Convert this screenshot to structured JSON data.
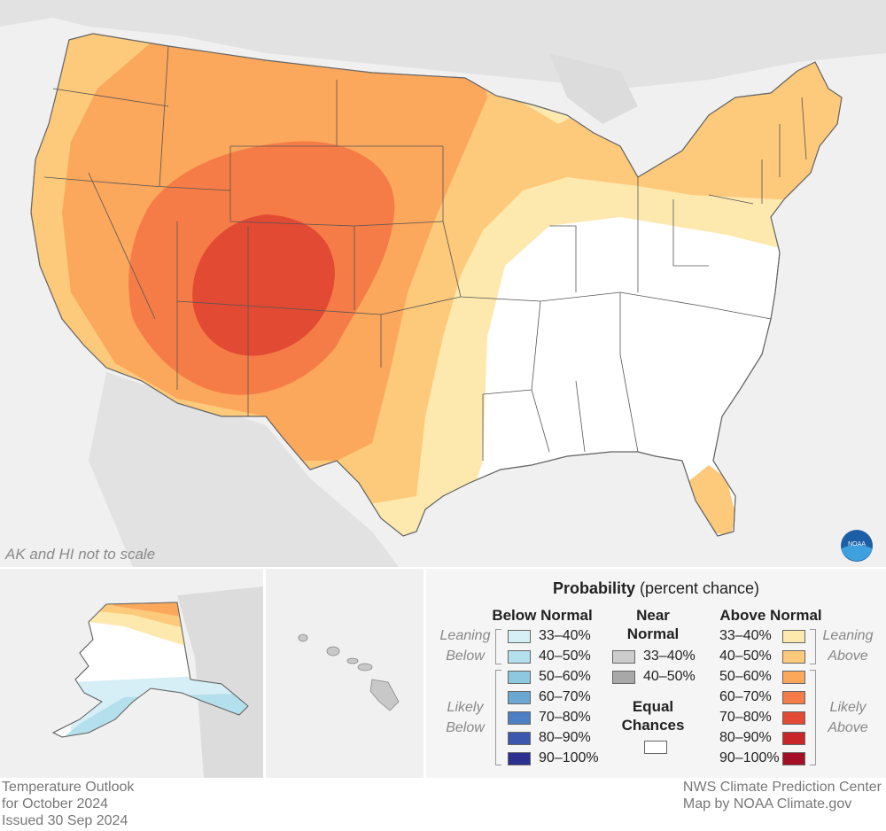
{
  "map": {
    "note": "AK and HI not to scale",
    "title_line1": "Temperature Outlook",
    "title_line2": "for October 2024",
    "issued": "Issued 30 Sep 2024",
    "credit_line1": "NWS Climate Prediction Center",
    "credit_line2": "Map by NOAA Climate.gov",
    "logo_text": "NOAA"
  },
  "legend": {
    "title_bold": "Probability",
    "title_rest": " (percent chance)",
    "below_header": "Below Normal",
    "near_header_1": "Near",
    "near_header_2": "Normal",
    "above_header": "Above Normal",
    "leaning_1": "Leaning",
    "below_word": "Below",
    "leaning_2": "Leaning",
    "above_word": "Above",
    "likely_1": "Likely",
    "likely_below": "Below",
    "likely_2": "Likely",
    "likely_above": "Above",
    "equal_1": "Equal",
    "equal_2": "Chances",
    "below": [
      {
        "label": "33–40%",
        "color": "#d6eef6"
      },
      {
        "label": "40–50%",
        "color": "#b4dfec"
      },
      {
        "label": "50–60%",
        "color": "#8ec8e0"
      },
      {
        "label": "60–70%",
        "color": "#6aa7d2"
      },
      {
        "label": "70–80%",
        "color": "#4d7fc4"
      },
      {
        "label": "80–90%",
        "color": "#3b58ae"
      },
      {
        "label": "90–100%",
        "color": "#2b2f8f"
      }
    ],
    "near": [
      {
        "label": "33–40%",
        "color": "#cccccc"
      },
      {
        "label": "40–50%",
        "color": "#a8a8a8"
      }
    ],
    "above": [
      {
        "label": "33–40%",
        "color": "#fde8ae"
      },
      {
        "label": "40–50%",
        "color": "#fdc97a"
      },
      {
        "label": "50–60%",
        "color": "#fba75c"
      },
      {
        "label": "60–70%",
        "color": "#f57c46"
      },
      {
        "label": "70–80%",
        "color": "#e34a33"
      },
      {
        "label": "80–90%",
        "color": "#c92629"
      },
      {
        "label": "90–100%",
        "color": "#a50f25"
      }
    ],
    "equal_color": "#ffffff"
  }
}
